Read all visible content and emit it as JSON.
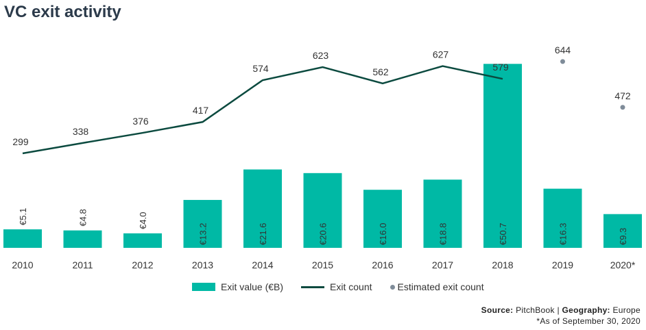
{
  "title": "VC exit activity",
  "legend": {
    "bar_label": "Exit value (€B)",
    "line_label": "Exit count",
    "dot_label": "Estimated exit count"
  },
  "source": {
    "source_key": "Source:",
    "source_val": "PitchBook",
    "sep": "|",
    "geo_key": "Geography:",
    "geo_val": "Europe"
  },
  "note": "*As of September 30, 2020",
  "colors": {
    "bar": "#00b9a5",
    "line": "#0b4a3f",
    "dot": "#7f8c99"
  },
  "chart_data": {
    "type": "bar",
    "categories": [
      "2010",
      "2011",
      "2012",
      "2013",
      "2014",
      "2015",
      "2016",
      "2017",
      "2018",
      "2019",
      "2020*"
    ],
    "series": [
      {
        "name": "Exit value (€B)",
        "type": "bar",
        "values": [
          5.1,
          4.8,
          4.0,
          13.2,
          21.6,
          20.6,
          16.0,
          18.8,
          50.7,
          16.3,
          9.3
        ],
        "labels": [
          "€5.1",
          "€4.8",
          "€4.0",
          "€13.2",
          "€21.6",
          "€20.6",
          "€16.0",
          "€18.8",
          "€50.7",
          "€16.3",
          "€9.3"
        ]
      },
      {
        "name": "Exit count",
        "type": "line",
        "values": [
          299,
          338,
          376,
          417,
          574,
          623,
          562,
          627,
          579,
          null,
          null
        ]
      },
      {
        "name": "Estimated exit count",
        "type": "scatter",
        "values": [
          null,
          null,
          null,
          null,
          null,
          null,
          null,
          null,
          null,
          644,
          472
        ]
      }
    ],
    "title": "VC exit activity",
    "xlabel": "",
    "ylabel": "",
    "grid": false,
    "legend_position": "bottom"
  }
}
